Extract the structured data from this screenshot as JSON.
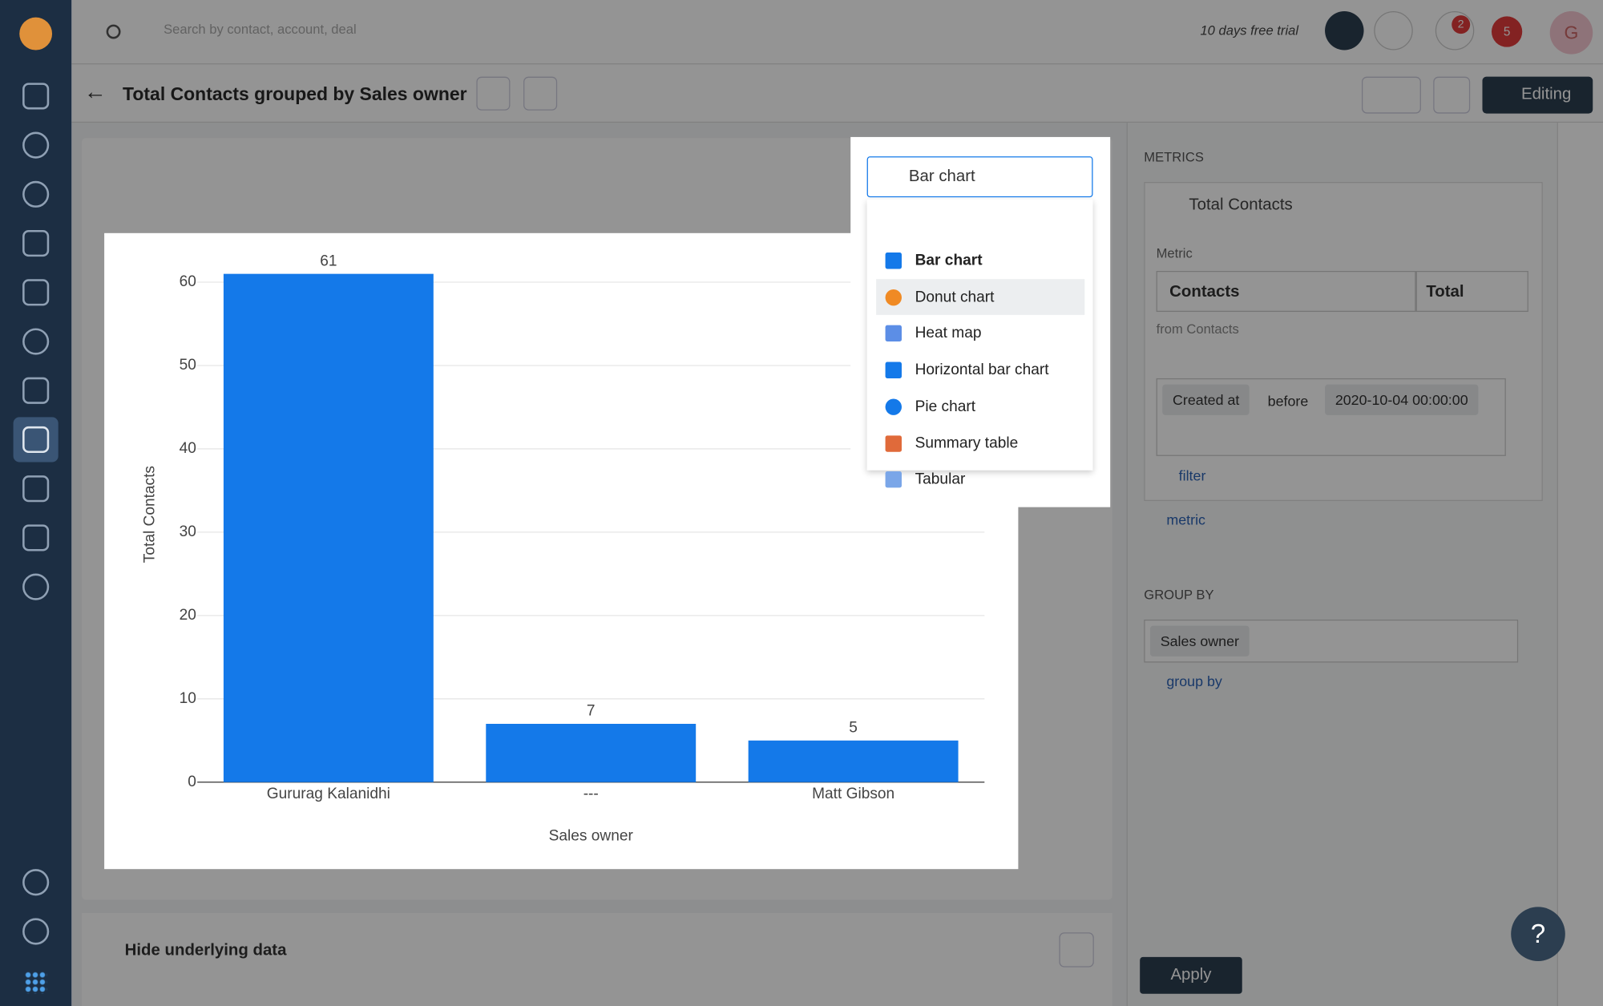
{
  "topbar": {
    "search_placeholder": "Search by contact, account, deal",
    "trial": "10 days free trial",
    "notifications_badge": "2",
    "alerts_badge": "5",
    "avatar": "G"
  },
  "header": {
    "title": "Total Contacts grouped by Sales owner",
    "mode": "Editing"
  },
  "chart_type_select": {
    "selected": "Bar chart",
    "options": [
      "Bar chart",
      "Donut chart",
      "Heat map",
      "Horizontal bar chart",
      "Pie chart",
      "Summary table",
      "Tabular"
    ]
  },
  "chart_data": {
    "type": "bar",
    "categories": [
      "Gururag Kalanidhi",
      "---",
      "Matt Gibson"
    ],
    "values": [
      61,
      7,
      5
    ],
    "color": "#1479e9",
    "xlabel": "Sales owner",
    "ylabel": "Total Contacts",
    "ylim": [
      0,
      65
    ],
    "yticks": [
      0,
      10,
      20,
      30,
      40,
      50,
      60
    ],
    "grid": true
  },
  "sidebar_panel": {
    "metrics_heading": "METRICS",
    "metric_name": "Total Contacts",
    "metric_label": "Metric",
    "metric_entity": "Contacts",
    "aggregate": "Total",
    "source": "from Contacts",
    "filter": {
      "field": "Created at",
      "operator": "before",
      "value": "2020-10-04 00:00:00"
    },
    "add_filter": "filter",
    "add_metric": "metric",
    "group_by_heading": "GROUP BY",
    "group_by_value": "Sales owner",
    "add_group_by": "group by",
    "apply": "Apply"
  },
  "underlying_data": {
    "toggle": "Hide underlying data"
  },
  "help": "?"
}
